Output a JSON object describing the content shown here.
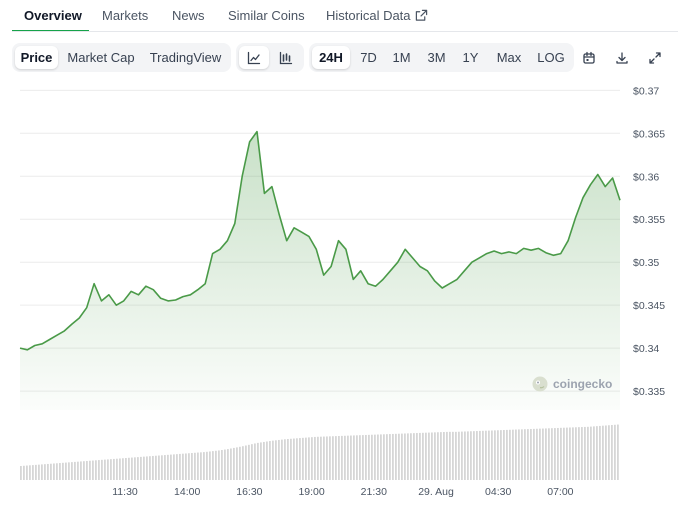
{
  "tabs": [
    {
      "label": "Overview",
      "active": true
    },
    {
      "label": "Markets"
    },
    {
      "label": "News"
    },
    {
      "label": "Similar Coins"
    },
    {
      "label": "Historical Data"
    }
  ],
  "toolbar": {
    "views": [
      {
        "label": "Price",
        "active": true
      },
      {
        "label": "Market Cap"
      },
      {
        "label": "TradingView"
      }
    ],
    "chart_styles": [
      {
        "icon": "line-chart-icon",
        "active": true
      },
      {
        "icon": "candlestick-chart-icon"
      }
    ],
    "ranges": [
      {
        "label": "24H",
        "active": true
      },
      {
        "label": "7D"
      },
      {
        "label": "1M"
      },
      {
        "label": "3M"
      },
      {
        "label": "1Y"
      },
      {
        "label": "Max"
      },
      {
        "label": "LOG"
      }
    ],
    "actions": [
      "calendar-icon",
      "download-icon",
      "expand-icon"
    ]
  },
  "watermark": "coingecko",
  "colors": {
    "line": "#4a9a48",
    "accent": "#16a34a",
    "volume": "#d6d6d6"
  },
  "chart_data": {
    "type": "area",
    "title": "",
    "xlabel": "",
    "ylabel": "",
    "ylim": [
      0.3328,
      0.3712
    ],
    "yticks": [
      {
        "value": 0.335,
        "label": "$0.335"
      },
      {
        "value": 0.34,
        "label": "$0.34"
      },
      {
        "value": 0.345,
        "label": "$0.345"
      },
      {
        "value": 0.35,
        "label": "$0.35"
      },
      {
        "value": 0.355,
        "label": "$0.355"
      },
      {
        "value": 0.36,
        "label": "$0.36"
      },
      {
        "value": 0.365,
        "label": "$0.365"
      },
      {
        "value": 0.37,
        "label": "$0.37"
      }
    ],
    "xticks": [
      "11:30",
      "14:00",
      "16:30",
      "19:00",
      "21:30",
      "29. Aug",
      "04:30",
      "07:00"
    ],
    "grid": true,
    "series": [
      {
        "values": [
          0.34,
          0.3398,
          0.3403,
          0.3405,
          0.341,
          0.3415,
          0.342,
          0.3428,
          0.3435,
          0.3447,
          0.3475,
          0.3455,
          0.3462,
          0.345,
          0.3455,
          0.3466,
          0.3462,
          0.3472,
          0.3468,
          0.3458,
          0.3455,
          0.3456,
          0.346,
          0.3462,
          0.3468,
          0.3475,
          0.351,
          0.3515,
          0.3525,
          0.3545,
          0.36,
          0.364,
          0.3652,
          0.358,
          0.3588,
          0.3555,
          0.3525,
          0.354,
          0.3535,
          0.353,
          0.3515,
          0.3485,
          0.3495,
          0.3525,
          0.3515,
          0.348,
          0.349,
          0.3475,
          0.3472,
          0.348,
          0.349,
          0.35,
          0.3515,
          0.3505,
          0.3495,
          0.349,
          0.3478,
          0.347,
          0.3475,
          0.348,
          0.349,
          0.35,
          0.3505,
          0.351,
          0.3513,
          0.351,
          0.3512,
          0.351,
          0.3516,
          0.3514,
          0.3516,
          0.3511,
          0.3508,
          0.351,
          0.3525,
          0.3552,
          0.3575,
          0.359,
          0.3602,
          0.3588,
          0.3598,
          0.3572
        ],
        "volume": [
          0.05,
          0.052,
          0.054,
          0.056,
          0.058,
          0.06,
          0.062,
          0.064,
          0.066,
          0.068,
          0.07,
          0.072,
          0.074,
          0.076,
          0.078,
          0.08,
          0.082,
          0.084,
          0.086,
          0.088,
          0.09,
          0.092,
          0.094,
          0.096,
          0.098,
          0.1,
          0.103,
          0.106,
          0.11,
          0.115,
          0.12,
          0.126,
          0.132,
          0.136,
          0.14,
          0.143,
          0.146,
          0.148,
          0.15,
          0.152,
          0.154,
          0.155,
          0.156,
          0.157,
          0.158,
          0.159,
          0.16,
          0.161,
          0.162,
          0.163,
          0.164,
          0.165,
          0.166,
          0.167,
          0.168,
          0.169,
          0.17,
          0.171,
          0.172,
          0.172,
          0.173,
          0.174,
          0.175,
          0.176,
          0.177,
          0.178,
          0.179,
          0.18,
          0.181,
          0.182,
          0.183,
          0.184,
          0.185,
          0.186,
          0.187,
          0.188,
          0.189,
          0.19,
          0.192,
          0.194,
          0.196,
          0.198
        ]
      }
    ]
  }
}
